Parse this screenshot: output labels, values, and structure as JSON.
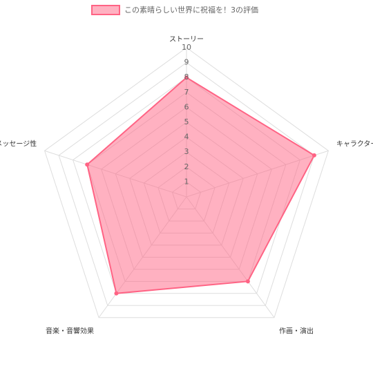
{
  "chart_data": {
    "type": "radar",
    "categories": [
      "ストーリー",
      "キャラクター",
      "作画・演出",
      "音楽・音響効果",
      "メッセージ性"
    ],
    "series": [
      {
        "name": "この素晴らしい世界に祝福を！3の評価",
        "color": "#ff6384",
        "values": [
          8,
          9,
          7,
          8,
          7
        ]
      }
    ],
    "rlim": [
      0,
      10
    ],
    "rticks": [
      1,
      2,
      3,
      4,
      5,
      6,
      7,
      8,
      9,
      10
    ],
    "grid": true,
    "legend": "top"
  }
}
